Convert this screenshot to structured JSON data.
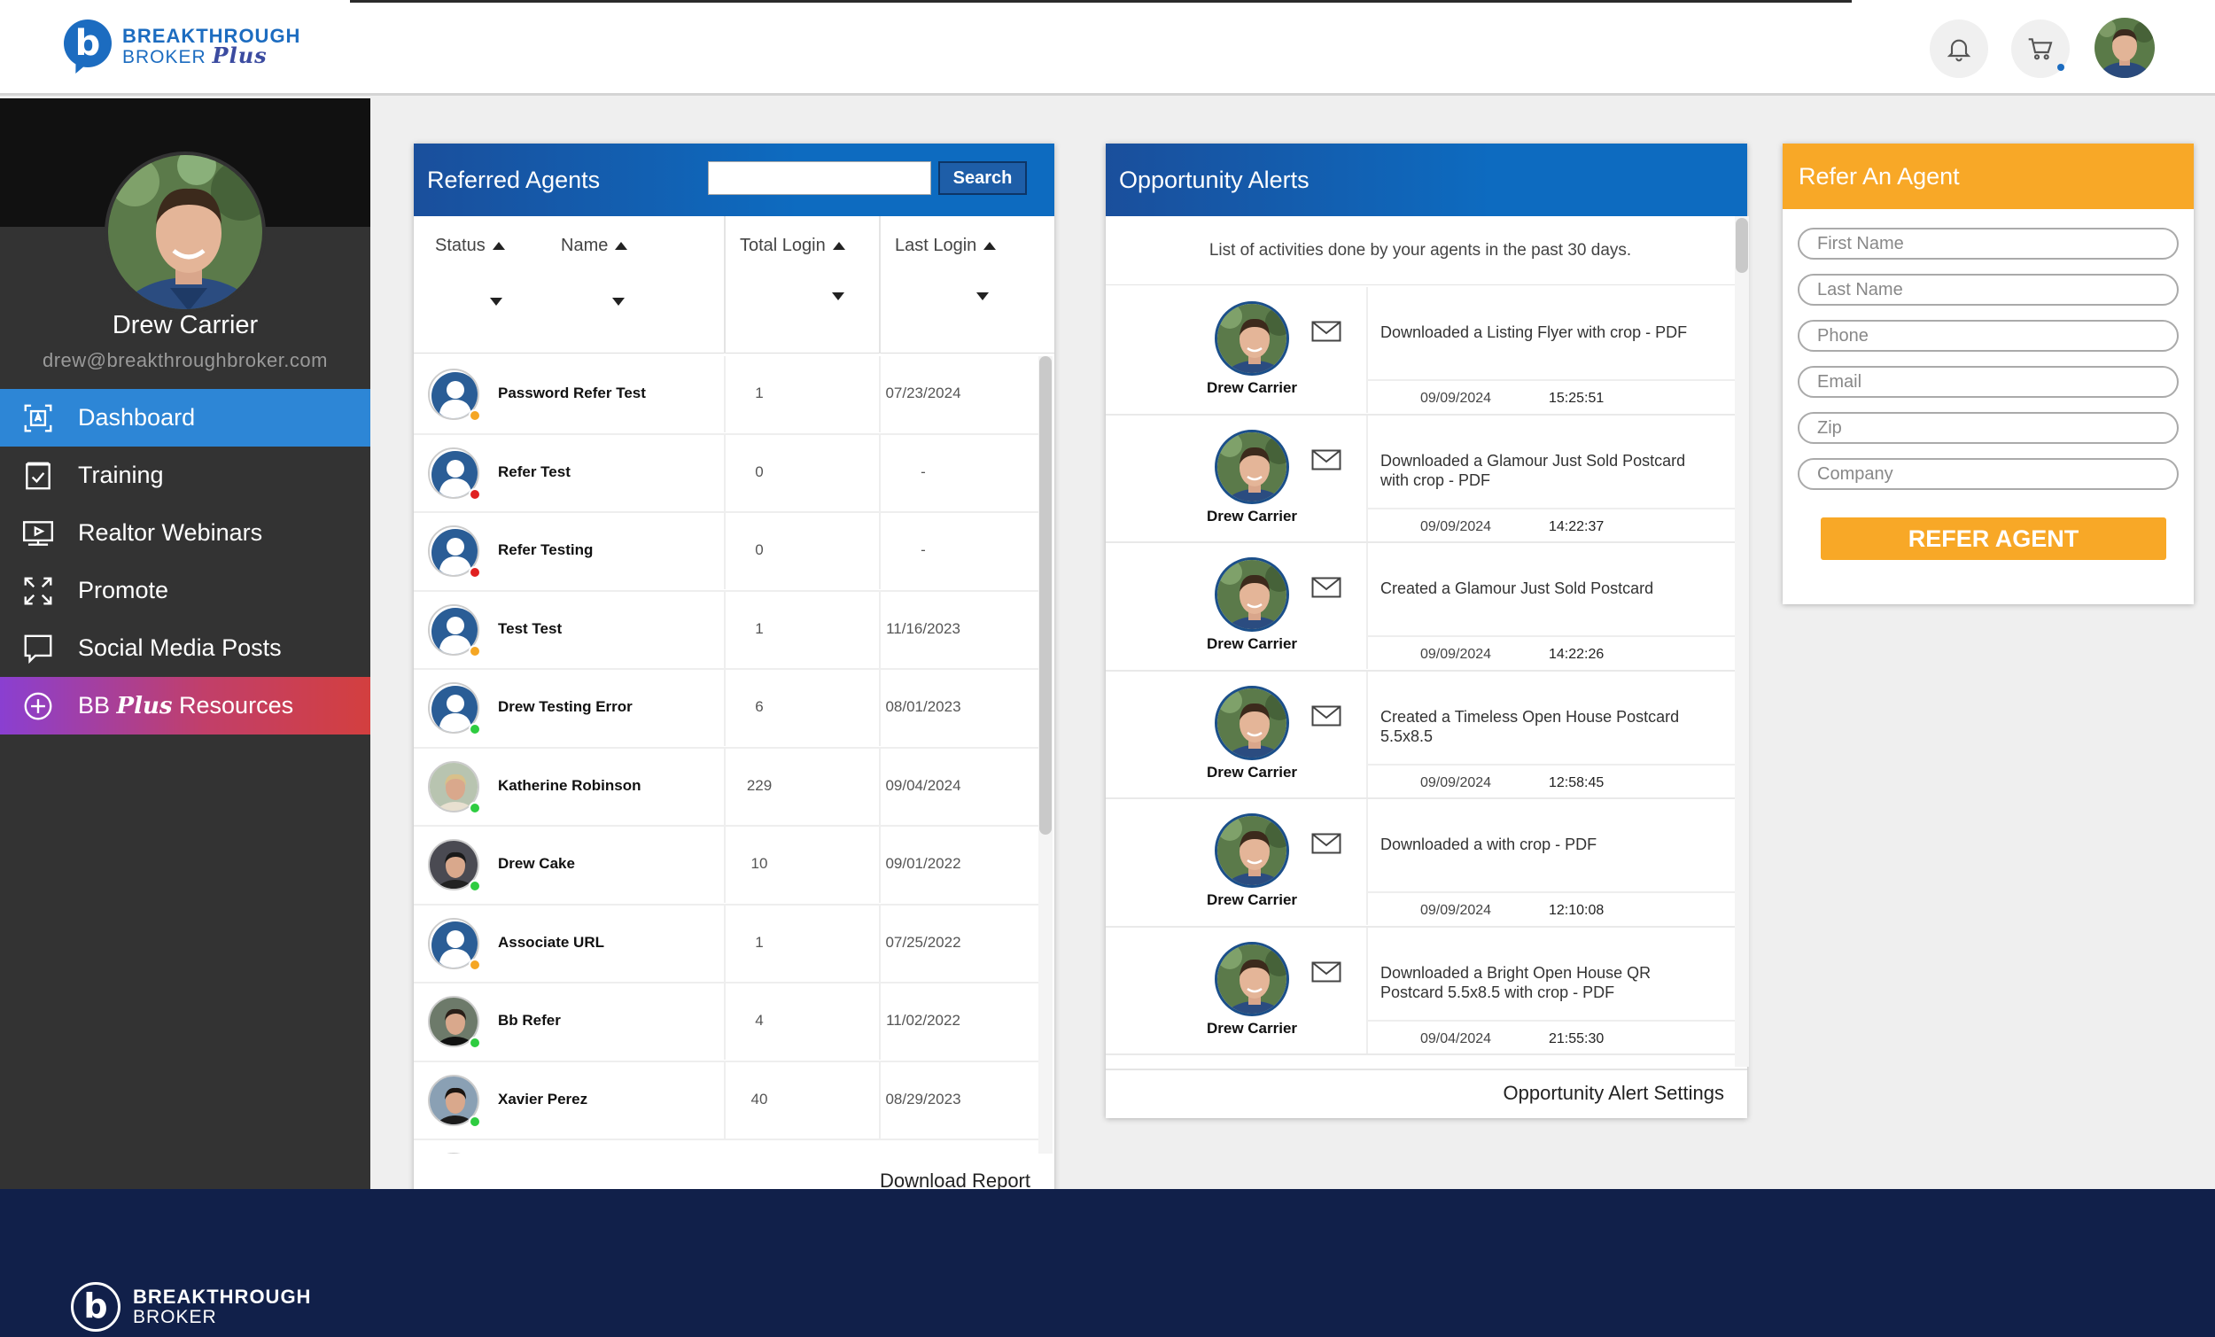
{
  "brand": {
    "line1": "BREAKTHROUGH",
    "line2": "BROKER",
    "plus": "Plus",
    "mark": "b"
  },
  "header": {
    "notifications_icon": "bell-icon",
    "cart_icon": "cart-icon"
  },
  "user": {
    "name": "Drew Carrier",
    "email": "drew@breakthroughbroker.com"
  },
  "nav": [
    {
      "label": "Dashboard",
      "icon": "dashboard-icon",
      "active": true
    },
    {
      "label": "Training",
      "icon": "checklist-icon"
    },
    {
      "label": "Realtor Webinars",
      "icon": "video-icon"
    },
    {
      "label": "Promote",
      "icon": "expand-icon"
    },
    {
      "label": "Social Media Posts",
      "icon": "chat-icon"
    },
    {
      "label_prefix": "BB",
      "label_plus": "Plus",
      "label_suffix": "Resources",
      "icon": "plus-circle-icon"
    }
  ],
  "referred_agents": {
    "title": "Referred Agents",
    "search_value": "",
    "search_button": "Search",
    "columns": {
      "status": "Status",
      "name": "Name",
      "total_login": "Total Login",
      "last_login": "Last Login"
    },
    "rows": [
      {
        "name": "Password Refer Test",
        "total": "1",
        "last": "07/23/2024",
        "status_color": "#f5a623",
        "photo": "default"
      },
      {
        "name": "Refer Test",
        "total": "0",
        "last": "-",
        "status_color": "#e02020",
        "photo": "default"
      },
      {
        "name": "Refer Testing",
        "total": "0",
        "last": "-",
        "status_color": "#e02020",
        "photo": "default"
      },
      {
        "name": "Test Test",
        "total": "1",
        "last": "11/16/2023",
        "status_color": "#f5a623",
        "photo": "default"
      },
      {
        "name": "Drew Testing Error",
        "total": "6",
        "last": "08/01/2023",
        "status_color": "#2ecc40",
        "photo": "default"
      },
      {
        "name": "Katherine Robinson",
        "total": "229",
        "last": "09/04/2024",
        "status_color": "#2ecc40",
        "photo": "woman"
      },
      {
        "name": "Drew Cake",
        "total": "10",
        "last": "09/01/2022",
        "status_color": "#2ecc40",
        "photo": "dark"
      },
      {
        "name": "Associate URL",
        "total": "1",
        "last": "07/25/2022",
        "status_color": "#f5a623",
        "photo": "default"
      },
      {
        "name": "Bb Refer",
        "total": "4",
        "last": "11/02/2022",
        "status_color": "#2ecc40",
        "photo": "man"
      },
      {
        "name": "Xavier Perez",
        "total": "40",
        "last": "08/29/2023",
        "status_color": "#2ecc40",
        "photo": "man2"
      }
    ],
    "download_label": "Download Report"
  },
  "opportunity_alerts": {
    "title": "Opportunity Alerts",
    "subtitle": "List of activities done by your agents in the past 30 days.",
    "items": [
      {
        "agent": "Drew Carrier",
        "activity": "Downloaded a Listing Flyer with crop - PDF",
        "date": "09/09/2024",
        "time": "15:25:51"
      },
      {
        "agent": "Drew Carrier",
        "activity": "Downloaded a Glamour Just Sold Postcard with crop - PDF",
        "date": "09/09/2024",
        "time": "14:22:37"
      },
      {
        "agent": "Drew Carrier",
        "activity": "Created a Glamour Just Sold Postcard",
        "date": "09/09/2024",
        "time": "14:22:26"
      },
      {
        "agent": "Drew Carrier",
        "activity": "Created a Timeless Open House Postcard 5.5x8.5",
        "date": "09/09/2024",
        "time": "12:58:45"
      },
      {
        "agent": "Drew Carrier",
        "activity": "Downloaded a with crop - PDF",
        "date": "09/09/2024",
        "time": "12:10:08"
      },
      {
        "agent": "Drew Carrier",
        "activity": "Downloaded a Bright Open House QR Postcard 5.5x8.5 with crop - PDF",
        "date": "09/04/2024",
        "time": "21:55:30"
      }
    ],
    "settings_label": "Opportunity Alert Settings"
  },
  "refer_agent": {
    "title": "Refer An Agent",
    "fields": [
      "First Name",
      "Last Name",
      "Phone",
      "Email",
      "Zip",
      "Company"
    ],
    "button": "REFER AGENT"
  },
  "footer": {
    "line1": "BREAKTHROUGH",
    "line2": "BROKER"
  }
}
